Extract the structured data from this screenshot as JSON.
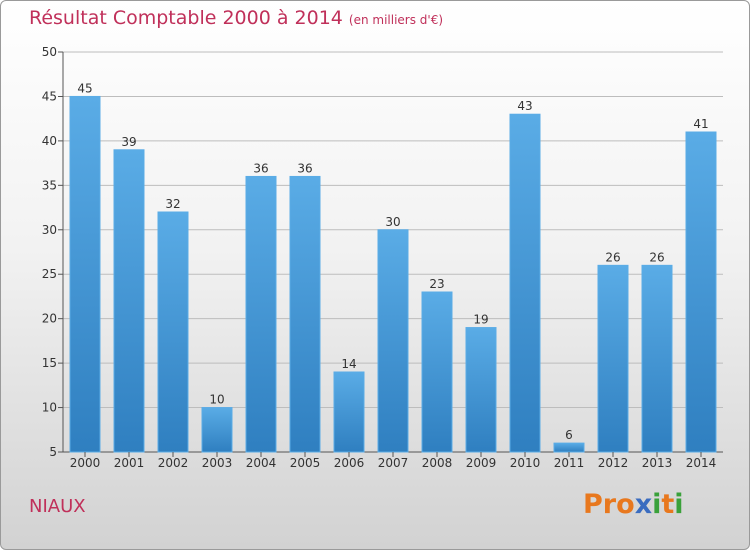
{
  "header": {
    "title": "Résultat Comptable 2000 à 2014",
    "subtitle": "(en milliers d'€)"
  },
  "commune": "NIAUX",
  "logo": {
    "text": "Proxiti",
    "letters": [
      "P",
      "r",
      "o",
      "x",
      "i",
      "t",
      "i"
    ]
  },
  "colors": {
    "bar": "#5aace6",
    "bar_dark": "#2f7fc0",
    "title": "#c0305a",
    "grid": "#bdbdbd",
    "logo": [
      "#e8781e",
      "#e8781e",
      "#e8781e",
      "#3a6cc0",
      "#3aa13a",
      "#e8781e",
      "#3aa13a"
    ]
  },
  "chart_data": {
    "type": "bar",
    "title": "Résultat Comptable 2000 à 2014",
    "xlabel": "",
    "ylabel": "",
    "categories": [
      "2000",
      "2001",
      "2002",
      "2003",
      "2004",
      "2005",
      "2006",
      "2007",
      "2008",
      "2009",
      "2010",
      "2011",
      "2012",
      "2013",
      "2014"
    ],
    "values": [
      45,
      39,
      32,
      10,
      36,
      36,
      14,
      30,
      23,
      19,
      43,
      6,
      26,
      26,
      41
    ],
    "ylim": [
      5,
      50
    ],
    "yticks": [
      5,
      10,
      15,
      20,
      25,
      30,
      35,
      40,
      45,
      50
    ],
    "grid": true
  }
}
